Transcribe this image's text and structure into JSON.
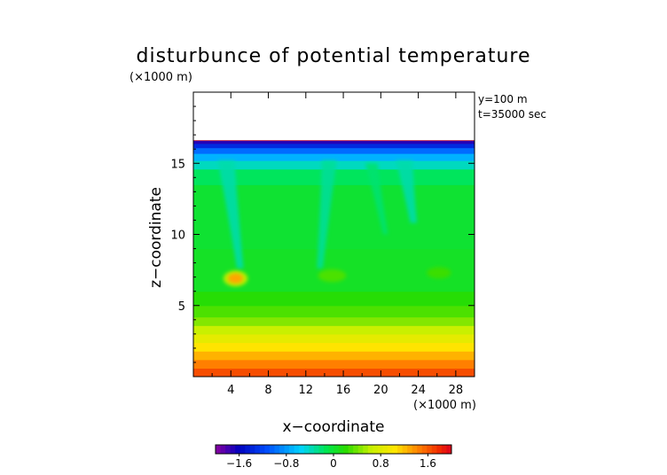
{
  "chart_data": {
    "type": "heatmap",
    "title": "disturbunce of potential temperature",
    "z_unit_label": "(×1000 m)",
    "x_unit_label": "(×1000 m)",
    "annotations": [
      "y=100 m",
      "t=35000 sec"
    ],
    "xlabel": "x−coordinate",
    "ylabel": "z−coordinate",
    "xlim": [
      0,
      30
    ],
    "ylim": [
      0,
      20
    ],
    "xticks": [
      4,
      8,
      12,
      16,
      20,
      24,
      28
    ],
    "xtick_labels": [
      "4",
      "8",
      "12",
      "16",
      "20",
      "24",
      "28"
    ],
    "yticks": [
      5,
      10,
      15
    ],
    "ytick_labels": [
      "5",
      "10",
      "15"
    ],
    "field_top_z": 16.6,
    "field_layers": [
      {
        "z0": 0.0,
        "z1": 0.6,
        "value": 1.65
      },
      {
        "z0": 0.6,
        "z1": 1.2,
        "value": 1.45
      },
      {
        "z0": 1.2,
        "z1": 1.8,
        "value": 1.25
      },
      {
        "z0": 1.8,
        "z1": 2.4,
        "value": 1.05
      },
      {
        "z0": 2.4,
        "z1": 3.0,
        "value": 0.85
      },
      {
        "z0": 3.0,
        "z1": 3.6,
        "value": 0.65
      },
      {
        "z0": 3.6,
        "z1": 4.2,
        "value": 0.45
      },
      {
        "z0": 4.2,
        "z1": 5.0,
        "value": 0.3
      },
      {
        "z0": 5.0,
        "z1": 6.0,
        "value": 0.18
      },
      {
        "z0": 6.0,
        "z1": 9.0,
        "value": 0.05
      },
      {
        "z0": 9.0,
        "z1": 13.5,
        "value": 0.0
      },
      {
        "z0": 13.5,
        "z1": 14.6,
        "value": -0.15
      },
      {
        "z0": 14.6,
        "z1": 15.2,
        "value": -0.4
      },
      {
        "z0": 15.2,
        "z1": 15.7,
        "value": -0.7
      },
      {
        "z0": 15.7,
        "z1": 16.1,
        "value": -1.0
      },
      {
        "z0": 16.1,
        "z1": 16.4,
        "value": -1.35
      },
      {
        "z0": 16.4,
        "z1": 16.6,
        "value": -1.7
      }
    ],
    "plumes": [
      {
        "x_top": 3.5,
        "x_bottom": 5.0,
        "z_top": 15.2,
        "z_bottom": 7.6,
        "width": 1.8,
        "value": -0.35
      },
      {
        "x_top": 14.5,
        "x_bottom": 13.5,
        "z_top": 15.2,
        "z_bottom": 7.6,
        "width": 1.6,
        "value": -0.3
      },
      {
        "x_top": 19.0,
        "x_bottom": 20.5,
        "z_top": 15.0,
        "z_bottom": 10.0,
        "width": 1.3,
        "value": -0.2
      },
      {
        "x_top": 22.5,
        "x_bottom": 23.5,
        "z_top": 15.2,
        "z_bottom": 10.8,
        "width": 1.8,
        "value": -0.35
      }
    ],
    "blobs": [
      {
        "x": 4.5,
        "z": 6.9,
        "rx": 1.3,
        "rz": 0.55,
        "value": 0.6
      },
      {
        "x": 4.5,
        "z": 6.9,
        "rx": 0.8,
        "rz": 0.35,
        "value": 1.3
      },
      {
        "x": 14.8,
        "z": 7.1,
        "rx": 1.5,
        "rz": 0.45,
        "value": 0.3
      },
      {
        "x": 26.2,
        "z": 7.3,
        "rx": 1.3,
        "rz": 0.4,
        "value": 0.25
      }
    ],
    "colorbar": {
      "min": -2.0,
      "max": 2.0,
      "ticks": [
        -1.6,
        -0.8,
        0,
        0.8,
        1.6
      ],
      "tick_labels": [
        "−1.6",
        "−0.8",
        "0",
        "0.8",
        "1.6"
      ]
    }
  }
}
